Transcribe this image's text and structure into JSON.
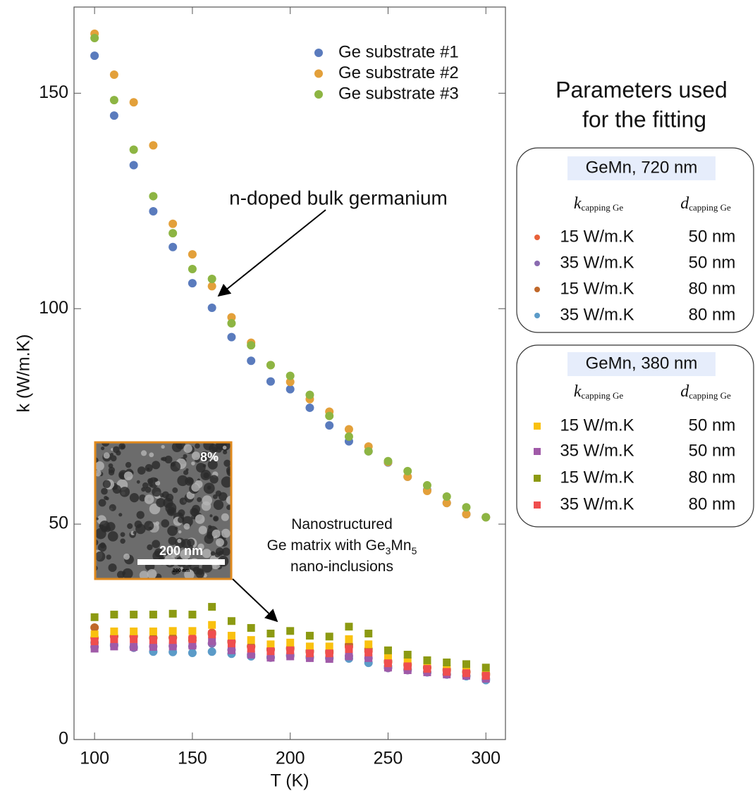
{
  "chart_data": {
    "type": "scatter",
    "x_label": "T (K)",
    "y_label": "k (W/m.K)",
    "x": [
      100,
      110,
      120,
      130,
      140,
      150,
      160,
      170,
      180,
      190,
      200,
      210,
      220,
      230,
      240,
      250,
      260,
      270,
      280,
      290,
      300
    ],
    "xlim": [
      89.5,
      310
    ],
    "ylim": [
      0,
      170
    ],
    "xticks": [
      100,
      150,
      200,
      250,
      300
    ],
    "yticks": [
      0,
      50,
      100,
      150
    ],
    "legend_position": "upper right",
    "series": [
      {
        "name": "Ge substrate #1",
        "color": "#5a7bbd",
        "values": [
          158.7,
          144.8,
          133.3,
          122.6,
          114.3,
          105.9,
          100.2,
          93.4,
          87.9,
          83.1,
          81.3,
          77.0,
          72.9,
          69.2,
          66.9,
          64.3,
          61.0,
          57.9,
          54.9,
          52.3,
          51.6
        ]
      },
      {
        "name": "Ge substrate #2",
        "color": "#e3a03a",
        "values": [
          163.8,
          154.3,
          147.9,
          137.9,
          119.7,
          112.6,
          105.2,
          98.0,
          92.1,
          86.9,
          83.0,
          79.0,
          76.1,
          72.0,
          68.0,
          64.4,
          61.0,
          57.7,
          54.9,
          52.3,
          51.6
        ]
      },
      {
        "name": "Ge substrate #3",
        "color": "#8db543",
        "values": [
          162.8,
          148.4,
          136.9,
          126.1,
          117.5,
          109.2,
          106.9,
          96.6,
          91.5,
          86.9,
          84.4,
          80.0,
          75.1,
          70.3,
          66.9,
          64.6,
          62.3,
          59.0,
          56.4,
          53.9,
          51.6
        ]
      }
    ],
    "fit_title": [
      "Parameters used",
      "for the fitting"
    ],
    "fit_columns": [
      {
        "symbol": "k",
        "subscript": "capping Ge"
      },
      {
        "symbol": "d",
        "subscript": "capping Ge"
      }
    ],
    "fits": [
      {
        "title": "GeMn, 720 nm",
        "marker": "circle",
        "series": [
          {
            "k": "15 W/m.K",
            "d": "50 nm",
            "color": "#e8613a",
            "values": [
              23.6,
              23.9,
              23.9,
              23.6,
              23.6,
              23.6,
              24.8,
              22.6,
              21.5,
              20.8,
              21.0,
              20.3,
              20.1,
              21.5,
              20.5,
              17.9,
              17.2,
              16.6,
              16.0,
              15.6,
              15.0
            ]
          },
          {
            "k": "35 W/m.K",
            "d": "50 nm",
            "color": "#8a6bb0",
            "values": [
              21.5,
              21.8,
              21.3,
              21.6,
              21.7,
              21.6,
              22.3,
              20.8,
              19.7,
              19.0,
              19.4,
              19.0,
              18.8,
              19.4,
              18.9,
              16.6,
              16.1,
              15.6,
              15.1,
              14.8,
              14.1
            ]
          },
          {
            "k": "15 W/m.K",
            "d": "80 nm",
            "color": "#c0682a",
            "values": [
              26.0,
              24.0,
              24.0,
              23.6,
              23.7,
              23.0,
              24.5,
              22.8,
              21.7,
              21.0,
              21.3,
              20.6,
              20.5,
              22.0,
              21.0,
              18.2,
              17.5,
              16.8,
              16.3,
              15.8,
              15.3
            ]
          },
          {
            "k": "35 W/m.K",
            "d": "80 nm",
            "color": "#5b9bc8",
            "values": [
              22.5,
              22.0,
              21.5,
              20.4,
              20.3,
              20.1,
              20.4,
              19.9,
              19.3,
              19.1,
              19.6,
              19.2,
              19.0,
              18.8,
              17.8,
              17.0,
              16.3,
              15.6,
              15.1,
              14.7,
              13.8
            ]
          }
        ]
      },
      {
        "title": "GeMn, 380 nm",
        "marker": "square",
        "series": [
          {
            "k": "15 W/m.K",
            "d": "50 nm",
            "color": "#f9c10f",
            "values": [
              24.4,
              25.1,
              25.1,
              25.1,
              25.2,
              25.2,
              26.6,
              24.1,
              23.1,
              22.1,
              22.5,
              21.6,
              21.6,
              23.3,
              22.1,
              19.0,
              18.2,
              17.0,
              16.4,
              15.9,
              15.1
            ]
          },
          {
            "k": "35 W/m.K",
            "d": "50 nm",
            "color": "#a05aa8",
            "values": [
              21.1,
              21.6,
              21.5,
              21.5,
              21.6,
              21.8,
              22.8,
              20.7,
              19.7,
              19.0,
              19.3,
              18.9,
              18.7,
              19.3,
              18.9,
              16.7,
              16.1,
              15.6,
              15.1,
              14.8,
              14.1
            ]
          },
          {
            "k": "15 W/m.K",
            "d": "80 nm",
            "color": "#8c9a12",
            "values": [
              28.4,
              29.0,
              29.0,
              29.0,
              29.2,
              29.0,
              30.8,
              27.5,
              25.9,
              24.6,
              25.2,
              24.1,
              23.9,
              26.2,
              24.6,
              20.7,
              19.7,
              18.4,
              17.9,
              17.5,
              16.7
            ]
          },
          {
            "k": "35 W/m.K",
            "d": "80 nm",
            "color": "#ef4e4e",
            "values": [
              22.8,
              23.3,
              23.3,
              23.1,
              23.1,
              23.3,
              24.4,
              22.3,
              21.1,
              20.5,
              20.7,
              20.0,
              20.0,
              21.0,
              20.2,
              17.7,
              17.0,
              16.4,
              15.7,
              15.4,
              14.8
            ]
          }
        ]
      }
    ],
    "annotations": {
      "bulk": "n-doped bulk germanium",
      "nano": [
        [
          {
            "t": "Nanostructured"
          }
        ],
        [
          {
            "t": "Ge matrix with Ge"
          },
          {
            "sub": "3"
          },
          {
            "t": "Mn"
          },
          {
            "sub": "5"
          }
        ],
        [
          {
            "t": "nano-inclusions"
          }
        ]
      ],
      "inset": {
        "fraction": "8%",
        "scale": "200 nm",
        "scale_small": "200 nm"
      }
    }
  }
}
